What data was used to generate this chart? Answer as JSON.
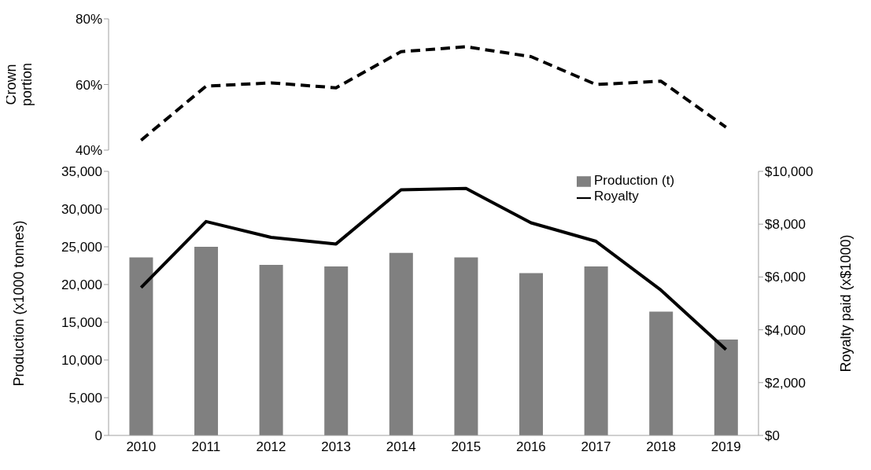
{
  "chart_data": [
    {
      "type": "line",
      "ylabel": "Crown portion",
      "categories": [
        "2010",
        "2011",
        "2012",
        "2013",
        "2014",
        "2015",
        "2016",
        "2017",
        "2018",
        "2019"
      ],
      "series": [
        {
          "color": "#000000",
          "line_style": "dashed",
          "values": [
            43,
            59.5,
            60.5,
            59,
            70,
            71.5,
            68.5,
            60,
            61,
            47
          ]
        }
      ],
      "ylim": [
        40,
        80
      ],
      "yticks": [
        {
          "value": 40,
          "label": "40%"
        },
        {
          "value": 60,
          "label": "60%"
        },
        {
          "value": 80,
          "label": "80%"
        }
      ],
      "tick_labels": "y",
      "grid": false,
      "legend": false,
      "marker": "none"
    },
    {
      "type": "bar",
      "ylabel": "Production (x1000 tonnes)",
      "y2label": "Royalty paid (x$1000)",
      "categories": [
        "2010",
        "2011",
        "2012",
        "2013",
        "2014",
        "2015",
        "2016",
        "2017",
        "2018",
        "2019"
      ],
      "series": [
        {
          "name": "Production (t)",
          "type": "bar",
          "color": "#808080",
          "values": [
            23600,
            25000,
            22600,
            22400,
            24200,
            23600,
            21500,
            22400,
            16400,
            12700
          ]
        },
        {
          "name": "Royalty",
          "type": "line",
          "axis": "y2",
          "color": "#000000",
          "line_style": "solid",
          "values": [
            5600,
            8100,
            7500,
            7250,
            9300,
            9350,
            8050,
            7350,
            5500,
            3250
          ]
        }
      ],
      "ylim": [
        0,
        35000
      ],
      "yticks": [
        {
          "value": 0,
          "label": "0"
        },
        {
          "value": 5000,
          "label": "5,000"
        },
        {
          "value": 10000,
          "label": "10,000"
        },
        {
          "value": 15000,
          "label": "15,000"
        },
        {
          "value": 20000,
          "label": "20,000"
        },
        {
          "value": 25000,
          "label": "25,000"
        },
        {
          "value": 30000,
          "label": "30,000"
        },
        {
          "value": 35000,
          "label": "35,000"
        }
      ],
      "y2lim": [
        0,
        10000
      ],
      "y2ticks": [
        {
          "value": 0,
          "label": "$0"
        },
        {
          "value": 2000,
          "label": "$2,000"
        },
        {
          "value": 4000,
          "label": "$4,000"
        },
        {
          "value": 6000,
          "label": "$6,000"
        },
        {
          "value": 8000,
          "label": "$8,000"
        },
        {
          "value": 10000,
          "label": "$10,000"
        }
      ],
      "grid": false,
      "legend": "top right",
      "marker": "none"
    }
  ]
}
